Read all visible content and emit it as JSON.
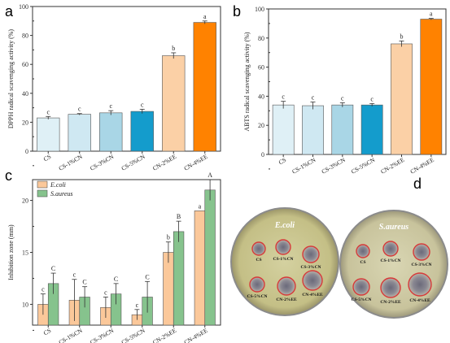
{
  "chart_data": [
    {
      "panel": "a",
      "type": "bar",
      "ylabel": "DPPH radical scavenging activity (%)",
      "xlabel": "",
      "ylim": [
        0,
        100
      ],
      "yticks": [
        0,
        20,
        40,
        60,
        80,
        100
      ],
      "categories": [
        "CS",
        "CS-1%CN",
        "CS-3%CN",
        "CS-5%CN",
        "CN-2%EE",
        "CN-4%EE"
      ],
      "values": [
        23,
        25.5,
        26.5,
        27.5,
        66,
        89
      ],
      "errors": [
        1.0,
        0.5,
        1.5,
        1.5,
        2.0,
        1.0
      ],
      "letters": [
        "c",
        "c",
        "c",
        "c",
        "b",
        "a"
      ],
      "colors": [
        "#dff0f6",
        "#cfe8f2",
        "#a9d6e6",
        "#149ccc",
        "#fbd0a6",
        "#ff8200"
      ]
    },
    {
      "panel": "b",
      "type": "bar",
      "ylabel": "ABTS radical scavenging activity (%)",
      "xlabel": "",
      "ylim": [
        0,
        100
      ],
      "yticks": [
        0,
        20,
        40,
        60,
        80,
        100
      ],
      "categories": [
        "CS",
        "CS-1%CN",
        "CS-3%CN",
        "CS-5%CN",
        "CN-2%EE",
        "CN-4%EE"
      ],
      "values": [
        34,
        33.5,
        34,
        34,
        76,
        93
      ],
      "errors": [
        2.5,
        2.5,
        1.5,
        1.0,
        2.0,
        0.5
      ],
      "letters": [
        "c",
        "c",
        "c",
        "c",
        "b",
        "a"
      ],
      "colors": [
        "#dff0f6",
        "#cfe8f2",
        "#a9d6e6",
        "#149ccc",
        "#fbd0a6",
        "#ff8200"
      ]
    },
    {
      "panel": "c",
      "type": "bar",
      "ylabel": "Inhibition zone (mm)",
      "xlabel": "",
      "ylim": [
        8,
        22
      ],
      "yticks": [
        10,
        15,
        20
      ],
      "categories": [
        "CS",
        "CS-1%CN",
        "CS-3%CN",
        "CS-5%CN",
        "CN-2%EE",
        "CN-4%EE"
      ],
      "series": [
        {
          "name": "E.coli",
          "values": [
            10.0,
            10.4,
            9.7,
            9.0,
            15.0,
            19.0
          ],
          "errors": [
            1.0,
            2.0,
            1.0,
            0.5,
            1.0,
            0.0
          ],
          "letters": [
            "c",
            "c",
            "c",
            "c",
            "b",
            "a"
          ],
          "color": "#fbc89a"
        },
        {
          "name": "S.aureus",
          "values": [
            12.0,
            10.7,
            11.0,
            10.7,
            17.0,
            21.0
          ],
          "errors": [
            1.0,
            1.0,
            1.0,
            1.5,
            1.0,
            1.0
          ],
          "letters": [
            "C",
            "C",
            "C",
            "C",
            "B",
            "A"
          ],
          "color": "#86c38d"
        }
      ],
      "legend_position": "top-left"
    }
  ],
  "panels": {
    "a": "a",
    "b": "b",
    "c": "c",
    "d": "d"
  },
  "petri": {
    "left_title": "E.coli",
    "right_title": "S.aureus",
    "left_labels": [
      "CS",
      "CS-1%CN",
      "CS-3%CN",
      "CS-5%CN",
      "CN-2%EE",
      "CN-4%EE"
    ],
    "right_labels": [
      "CS",
      "CS-1%CN",
      "CS-3%CN",
      "CS-5%CN",
      "CN-2%EE",
      "CN-4%EE"
    ]
  }
}
